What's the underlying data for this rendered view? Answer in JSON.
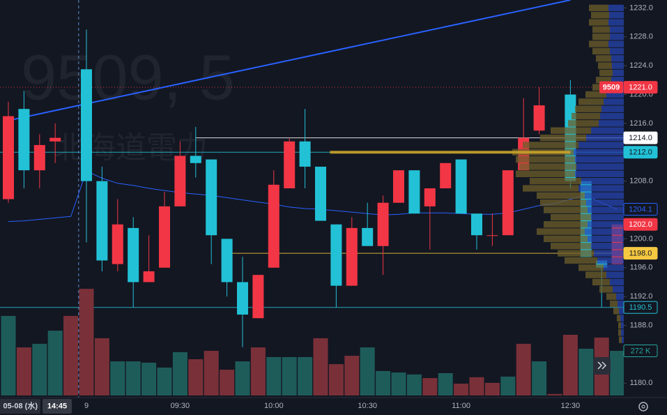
{
  "chart_data": {
    "type": "candlestick",
    "watermark": "9509, 5",
    "watermark_name": "北海道電力",
    "categories": [
      null,
      null,
      null,
      null,
      null,
      "9",
      null,
      null,
      null,
      null,
      null,
      "09:30",
      null,
      null,
      null,
      null,
      null,
      "10:00",
      null,
      null,
      null,
      null,
      null,
      "10:30",
      null,
      null,
      null,
      null,
      null,
      "11:00",
      null,
      null,
      null,
      null,
      null,
      null,
      "12:30",
      null,
      null,
      null
    ],
    "open": [
      1205.5,
      1218,
      1209.5,
      1213.5,
      null,
      1223.5,
      1208,
      1196.5,
      1201.5,
      1194,
      1196,
      1204.5,
      1211.5,
      1211,
      1200,
      1194,
      1189,
      1196,
      1207,
      1213.5,
      1210,
      1202,
      1193.5,
      1201.5,
      1199,
      1205,
      1209.5,
      1204.5,
      1207,
      1211,
      1203.5,
      1200.5,
      1200.5,
      1209.5,
      1215,
      null,
      1220,
      1208,
      1197,
      1196.5
    ],
    "high": [
      1219,
      1220.5,
      1214.5,
      1216,
      null,
      1229,
      1210,
      1205.5,
      1203,
      1200.5,
      1206.5,
      1213.5,
      1215.5,
      1211,
      1200,
      1197.5,
      1195,
      1209.5,
      1214,
      1218,
      1210,
      1202,
      1203,
      1205,
      1206,
      1209.5,
      1209.5,
      1207,
      1210.5,
      1211,
      1203.5,
      1203.5,
      1209.5,
      1219.5,
      1221,
      null,
      1222,
      1208,
      1197,
      1202
    ],
    "low": [
      1205,
      1207,
      1207,
      1210.5,
      null,
      1199.5,
      1195.5,
      1195.5,
      1190.5,
      1194,
      1196,
      1204.5,
      1208.5,
      1196.5,
      1192,
      1185,
      1189,
      1196,
      1207,
      1207,
      1202.5,
      1190.5,
      1193.5,
      1199,
      1195,
      1205,
      1203.5,
      1198.5,
      1207,
      1203.5,
      1198.5,
      1199,
      1200.5,
      1209.5,
      1214.5,
      null,
      1207,
      1197.5,
      1190.5,
      1196.5
    ],
    "close": [
      1217,
      1209.5,
      1213,
      1214,
      null,
      1208,
      1197,
      1202,
      1194,
      1195.5,
      1204.5,
      1211.5,
      1210.5,
      1200.5,
      1194,
      1189.5,
      1195,
      1207.5,
      1213.5,
      1210,
      1202.5,
      1193.5,
      1201.5,
      1199,
      1205,
      1209.5,
      1203.5,
      1207,
      1210.5,
      1203.5,
      1200.5,
      1200.5,
      1209.5,
      1214,
      1218.5,
      null,
      1208,
      1197.5,
      1196,
      1202
    ],
    "up_color": "#f23645",
    "down_color": "#22c1d6",
    "ylim": [
      1178,
      1233.1
    ],
    "yticks": [
      {
        "value": 1180,
        "label": "1180.0"
      },
      {
        "value": 1188,
        "label": "1188.0"
      },
      {
        "value": 1192,
        "label": "1192.0"
      },
      {
        "value": 1196,
        "label": "1196.0"
      },
      {
        "value": 1200,
        "label": "1200.0"
      },
      {
        "value": 1204,
        "label": "1204.0"
      },
      {
        "value": 1208,
        "label": "1208.0"
      },
      {
        "value": 1212,
        "label": "1212.0"
      },
      {
        "value": 1216,
        "label": "1216.0"
      },
      {
        "value": 1220,
        "label": "1220.0"
      },
      {
        "value": 1224,
        "label": "1224.0"
      },
      {
        "value": 1228,
        "label": "1228.0"
      },
      {
        "value": 1232,
        "label": "1232.0"
      }
    ],
    "volume": {
      "values": [
        485000,
        293000,
        315000,
        395000,
        485000,
        650000,
        349000,
        208000,
        208000,
        200000,
        170000,
        264000,
        221000,
        272000,
        157000,
        208000,
        293000,
        234000,
        234000,
        234000,
        349000,
        191000,
        242000,
        293000,
        149000,
        140000,
        128000,
        106000,
        136000,
        72000,
        111000,
        77000,
        115000,
        315000,
        208000,
        9000,
        370000,
        285000,
        353000,
        272000
      ],
      "colors": [
        "#1e5c5a",
        "#7a3038",
        "#1e5c5a",
        "#1e5c5a",
        "#7a3038",
        "#7a3038",
        "#7a3038",
        "#1e5c5a",
        "#1e5c5a",
        "#1e5c5a",
        "#1e5c5a",
        "#1e5c5a",
        "#7a3038",
        "#7a3038",
        "#7a3038",
        "#1e5c5a",
        "#7a3038",
        "#1e5c5a",
        "#1e5c5a",
        "#1e5c5a",
        "#7a3038",
        "#7a3038",
        "#7a3038",
        "#1e5c5a",
        "#1e5c5a",
        "#1e5c5a",
        "#1e5c5a",
        "#7a3038",
        "#1e5c5a",
        "#7a3038",
        "#7a3038",
        "#7a3038",
        "#1e5c5a",
        "#7a3038",
        "#1e5c5a",
        "#7a3038",
        "#7a3038",
        "#1e5c5a",
        "#7a3038",
        "#1e5c5a"
      ],
      "ylim": [
        0,
        710000
      ],
      "label": {
        "value": 272000,
        "label": "272 K",
        "color": "#26a69a"
      }
    },
    "moving_average": {
      "values": [
        1202.4,
        1202.5,
        1202.7,
        1202.9,
        1203.1,
        1209.4,
        1208.4,
        1207.7,
        1207.4,
        1207,
        1206.7,
        1206.4,
        1206.2,
        1206,
        1205.7,
        1205.4,
        1205.1,
        1204.8,
        1204.4,
        1204.2,
        1204.1,
        1203.9,
        1203.7,
        1203.5,
        1203.3,
        1203.4,
        1203.6,
        1203.6,
        1203.6,
        1203.5,
        1203.4,
        1203.4,
        1203.6,
        1204.1,
        1204.6,
        1204.9,
        1205.5,
        1206,
        1205,
        1204.1
      ],
      "color": "#2962ff"
    },
    "trendline": {
      "x": [
        0,
        36
      ],
      "values": [
        1216.4,
        1233.1
      ],
      "color": "#2962ff"
    },
    "poc": {
      "value": 1212,
      "x": [
        20.6,
        36
      ],
      "color": "#c9a227"
    },
    "levels": [
      {
        "value": 1221,
        "label": "1221.0",
        "tag": "9509",
        "color": "#f23645",
        "text_color": "#ffffff",
        "line": "dotted",
        "style": "filled"
      },
      {
        "value": 1214,
        "label": "1214.0",
        "color": "#ffffff",
        "text_color": "#131722",
        "line": "solid",
        "x_start": 12,
        "style": "filled"
      },
      {
        "value": 1212,
        "label": "1212.0",
        "color": "#22c1d6",
        "text_color": "#131722",
        "line": "solid",
        "x_start": -1,
        "style": "filled"
      },
      {
        "value": 1204.1,
        "label": "1204.1",
        "color": "#2962ff",
        "text_color": "#2962ff",
        "line": "none",
        "style": "outline"
      },
      {
        "value": 1202,
        "label": "1202.0",
        "color": "#f23645",
        "text_color": "#ffffff",
        "line": "none",
        "style": "filled"
      },
      {
        "value": 1198,
        "label": "1198.0",
        "color": "#f5c842",
        "text_color": "#131722",
        "line": "solid",
        "x_start": 14.2,
        "style": "filled"
      },
      {
        "value": 1190.5,
        "label": "1190.5",
        "color": "#22c1d6",
        "text_color": "#22c1d6",
        "line": "solid",
        "x_start": -1,
        "style": "outline"
      }
    ],
    "volume_profile": {
      "prices": [
        1232,
        1231,
        1230,
        1229,
        1228,
        1227,
        1226,
        1225,
        1224,
        1223,
        1222,
        1221,
        1220,
        1219,
        1218,
        1217,
        1216,
        1215,
        1214,
        1213,
        1212,
        1211,
        1210,
        1209,
        1208,
        1207,
        1206,
        1205,
        1204,
        1203,
        1202,
        1201,
        1200,
        1199,
        1198,
        1197,
        1196,
        1195,
        1194,
        1193,
        1192,
        1191,
        1190,
        1189,
        1188,
        1187,
        1186
      ],
      "up": [
        22,
        21,
        22,
        20,
        20,
        22,
        20,
        18,
        17,
        16,
        18,
        20,
        25,
        29,
        32,
        34,
        36,
        47,
        54,
        65,
        72,
        70,
        68,
        70,
        61,
        65,
        56,
        54,
        52,
        47,
        52,
        56,
        52,
        47,
        43,
        38,
        29,
        25,
        20,
        16,
        11,
        9,
        7,
        5,
        4,
        4,
        3
      ],
      "down": [
        28,
        26,
        28,
        25,
        25,
        28,
        25,
        22,
        20,
        19,
        22,
        25,
        30,
        36,
        38,
        41,
        44,
        58,
        66,
        80,
        88,
        85,
        82,
        85,
        74,
        80,
        69,
        66,
        63,
        58,
        63,
        69,
        63,
        58,
        52,
        47,
        36,
        30,
        25,
        19,
        14,
        11,
        8,
        5,
        4,
        4,
        4
      ],
      "up_color": "#2746b0",
      "down_color": "#6d5f2b"
    },
    "crosshair": {
      "x": 4.5,
      "time_label": "14:45",
      "date_label": "05-08 (水)"
    }
  }
}
